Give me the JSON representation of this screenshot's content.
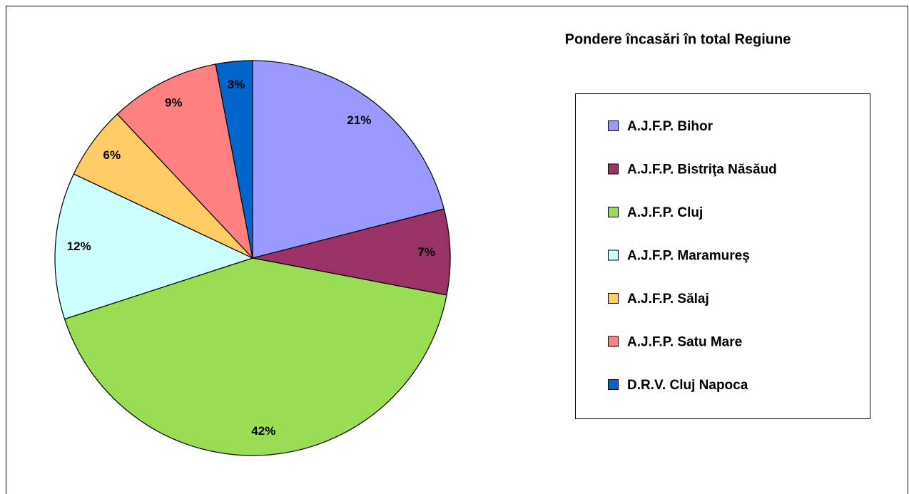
{
  "chart_data": {
    "type": "pie",
    "title": "Pondere încasări în total Regiune",
    "categories": [
      "A.J.F.P. Bihor",
      "A.J.F.P. Bistriţa Năsăud",
      "A.J.F.P. Cluj",
      "A.J.F.P. Maramureş",
      "A.J.F.P. Sălaj",
      "A.J.F.P. Satu Mare",
      "D.R.V. Cluj Napoca"
    ],
    "values": [
      21,
      7,
      42,
      12,
      6,
      9,
      3
    ],
    "value_labels": [
      "21%",
      "7%",
      "42%",
      "12%",
      "6%",
      "9%",
      "3%"
    ],
    "colors": [
      "#9999ff",
      "#993366",
      "#99dd55",
      "#ccffff",
      "#ffcc66",
      "#ff8080",
      "#0066cc"
    ],
    "legend": "right"
  }
}
